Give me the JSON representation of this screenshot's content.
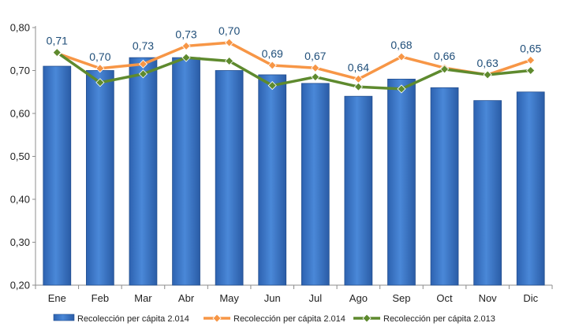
{
  "chart_data": {
    "type": "bar",
    "categories": [
      "Ene",
      "Feb",
      "Mar",
      "Abr",
      "May",
      "Jun",
      "Jul",
      "Ago",
      "Sep",
      "Oct",
      "Nov",
      "Dic"
    ],
    "ylim": [
      0.2,
      0.8
    ],
    "yticks": [
      "0,20",
      "0,30",
      "0,40",
      "0,50",
      "0,60",
      "0,70",
      "0,80"
    ],
    "ytick_values": [
      0.2,
      0.3,
      0.4,
      0.5,
      0.6,
      0.7,
      0.8
    ],
    "grid": false,
    "legend_position": "bottom",
    "series": [
      {
        "name": "Recolección per cápita 2.014",
        "type": "bar",
        "color": "#3a76c8",
        "values": [
          0.71,
          0.7,
          0.73,
          0.73,
          0.7,
          0.69,
          0.67,
          0.64,
          0.68,
          0.66,
          0.63,
          0.65
        ],
        "labels": [
          "0,71",
          "0,70",
          "0,73",
          "0,73",
          "0,70",
          "0,69",
          "0,67",
          "0,64",
          "0,68",
          "0,66",
          "0,63",
          "0,65"
        ]
      },
      {
        "name": "Recolección per cápita 2.014",
        "type": "line",
        "color": "#f79646",
        "marker": "diamond",
        "values": [
          0.74,
          0.705,
          0.715,
          0.757,
          0.765,
          0.712,
          0.706,
          0.68,
          0.732,
          0.706,
          0.69,
          0.724
        ]
      },
      {
        "name": "Recolección per cápita 2.013",
        "type": "line",
        "color": "#5e8a2e",
        "marker": "diamond",
        "values": [
          0.742,
          0.672,
          0.692,
          0.73,
          0.722,
          0.665,
          0.685,
          0.662,
          0.657,
          0.703,
          0.69,
          0.7
        ]
      }
    ]
  }
}
